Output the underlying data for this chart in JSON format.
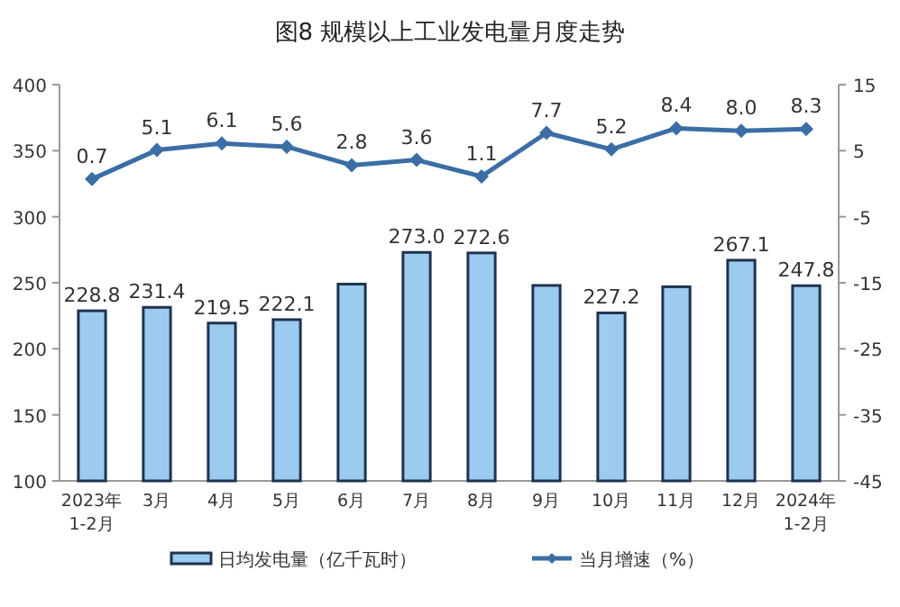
{
  "chart_data": {
    "type": "bar",
    "title": "图8  规模以上工业发电量月度走势",
    "categories": [
      "2023年\n1-2月",
      "3月",
      "4月",
      "5月",
      "6月",
      "7月",
      "8月",
      "9月",
      "10月",
      "11月",
      "12月",
      "2024年\n1-2月"
    ],
    "series": [
      {
        "name": "日均发电量（亿千瓦时）",
        "color": "#9ccbf0",
        "values": [
          228.8,
          231.4,
          219.5,
          222.1,
          249,
          273.0,
          272.6,
          248,
          227.2,
          247,
          267.1,
          247.8
        ],
        "value_labels": [
          "228.8",
          "231.4",
          "219.5",
          "222.1",
          null,
          "273.0",
          "272.6",
          null,
          "227.2",
          null,
          "267.1",
          "247.8"
        ]
      },
      {
        "name": "当月增速（%）",
        "type": "line",
        "axis": "y2",
        "color": "#3a6ea5",
        "marker": "diamond",
        "values": [
          0.7,
          5.1,
          6.1,
          5.6,
          2.8,
          3.6,
          1.1,
          7.7,
          5.2,
          8.4,
          8.0,
          8.3
        ],
        "value_labels": [
          "0.7",
          "5.1",
          "6.1",
          "5.6",
          "2.8",
          "3.6",
          "1.1",
          "7.7",
          "5.2",
          "8.4",
          "8.0",
          "8.3"
        ]
      }
    ],
    "ylim": [
      100,
      400
    ],
    "yticks": [
      100,
      150,
      200,
      250,
      300,
      350,
      400
    ],
    "y2lim": [
      -45,
      15
    ],
    "y2ticks": [
      -45,
      -35,
      -25,
      -15,
      -5,
      5,
      15
    ],
    "legend": "bottom",
    "grid": false
  }
}
